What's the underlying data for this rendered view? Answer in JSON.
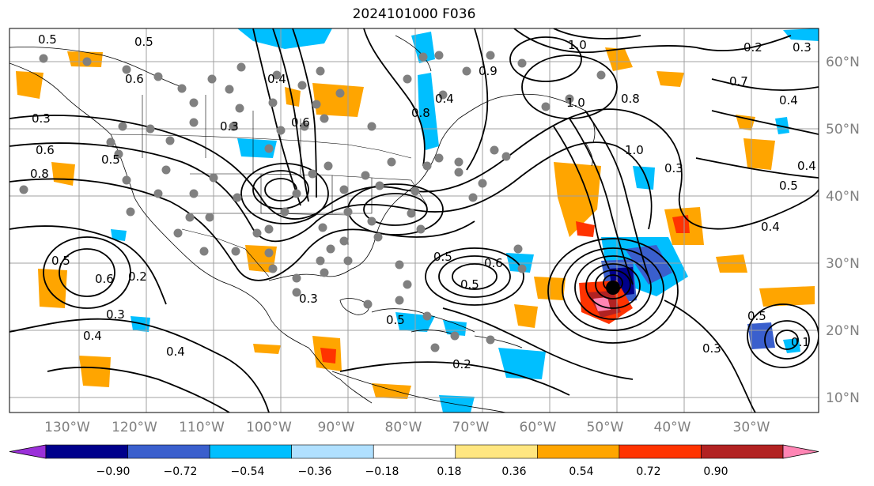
{
  "title": "2024101000 F036",
  "longitude_labels": [
    "130°W",
    "120°W",
    "110°W",
    "100°W",
    "90°W",
    "80°W",
    "70°W",
    "60°W",
    "50°W",
    "40°W",
    "30°W"
  ],
  "latitude_labels": [
    "60°N",
    "50°N",
    "40°N",
    "30°N",
    "20°N",
    "10°N"
  ],
  "colorbar": {
    "tick_labels": [
      "−0.90",
      "−0.72",
      "−0.54",
      "−0.36",
      "−0.18",
      "0.18",
      "0.36",
      "0.54",
      "0.72",
      "0.90"
    ],
    "colors": [
      "#9b30d9",
      "#00008b",
      "#3a5fcd",
      "#00bfff",
      "#b0e0ff",
      "#ffffff",
      "#ffe680",
      "#ffa500",
      "#ff3300",
      "#b22222",
      "#ff85b4"
    ]
  },
  "contour_labels": [
    {
      "t": "0.5"
    },
    {
      "t": "0.5"
    },
    {
      "t": "0.6"
    },
    {
      "t": "0.3"
    },
    {
      "t": "0.6"
    },
    {
      "t": "0.5"
    },
    {
      "t": "0.8"
    },
    {
      "t": "1.0"
    },
    {
      "t": "0.3"
    },
    {
      "t": "0.6"
    },
    {
      "t": "0.4"
    },
    {
      "t": "0.5"
    },
    {
      "t": "0.6"
    },
    {
      "t": "0.2"
    },
    {
      "t": "0.3"
    },
    {
      "t": "0.4"
    },
    {
      "t": "0.4"
    },
    {
      "t": "0.3"
    },
    {
      "t": "0.5"
    },
    {
      "t": "0.6"
    },
    {
      "t": "0.5"
    },
    {
      "t": "0.2"
    },
    {
      "t": "0.5"
    },
    {
      "t": "1.0"
    },
    {
      "t": "0.8"
    },
    {
      "t": "1.0"
    },
    {
      "t": "0.3"
    },
    {
      "t": "0.9"
    },
    {
      "t": "0.7"
    },
    {
      "t": "0.4"
    },
    {
      "t": "0.2"
    },
    {
      "t": "0.3"
    },
    {
      "t": "0.4"
    },
    {
      "t": "0.5"
    },
    {
      "t": "0.4"
    },
    {
      "t": "0.5"
    },
    {
      "t": "0.3"
    },
    {
      "t": "0.1"
    },
    {
      "t": "0.8"
    },
    {
      "t": "0.4"
    }
  ]
}
